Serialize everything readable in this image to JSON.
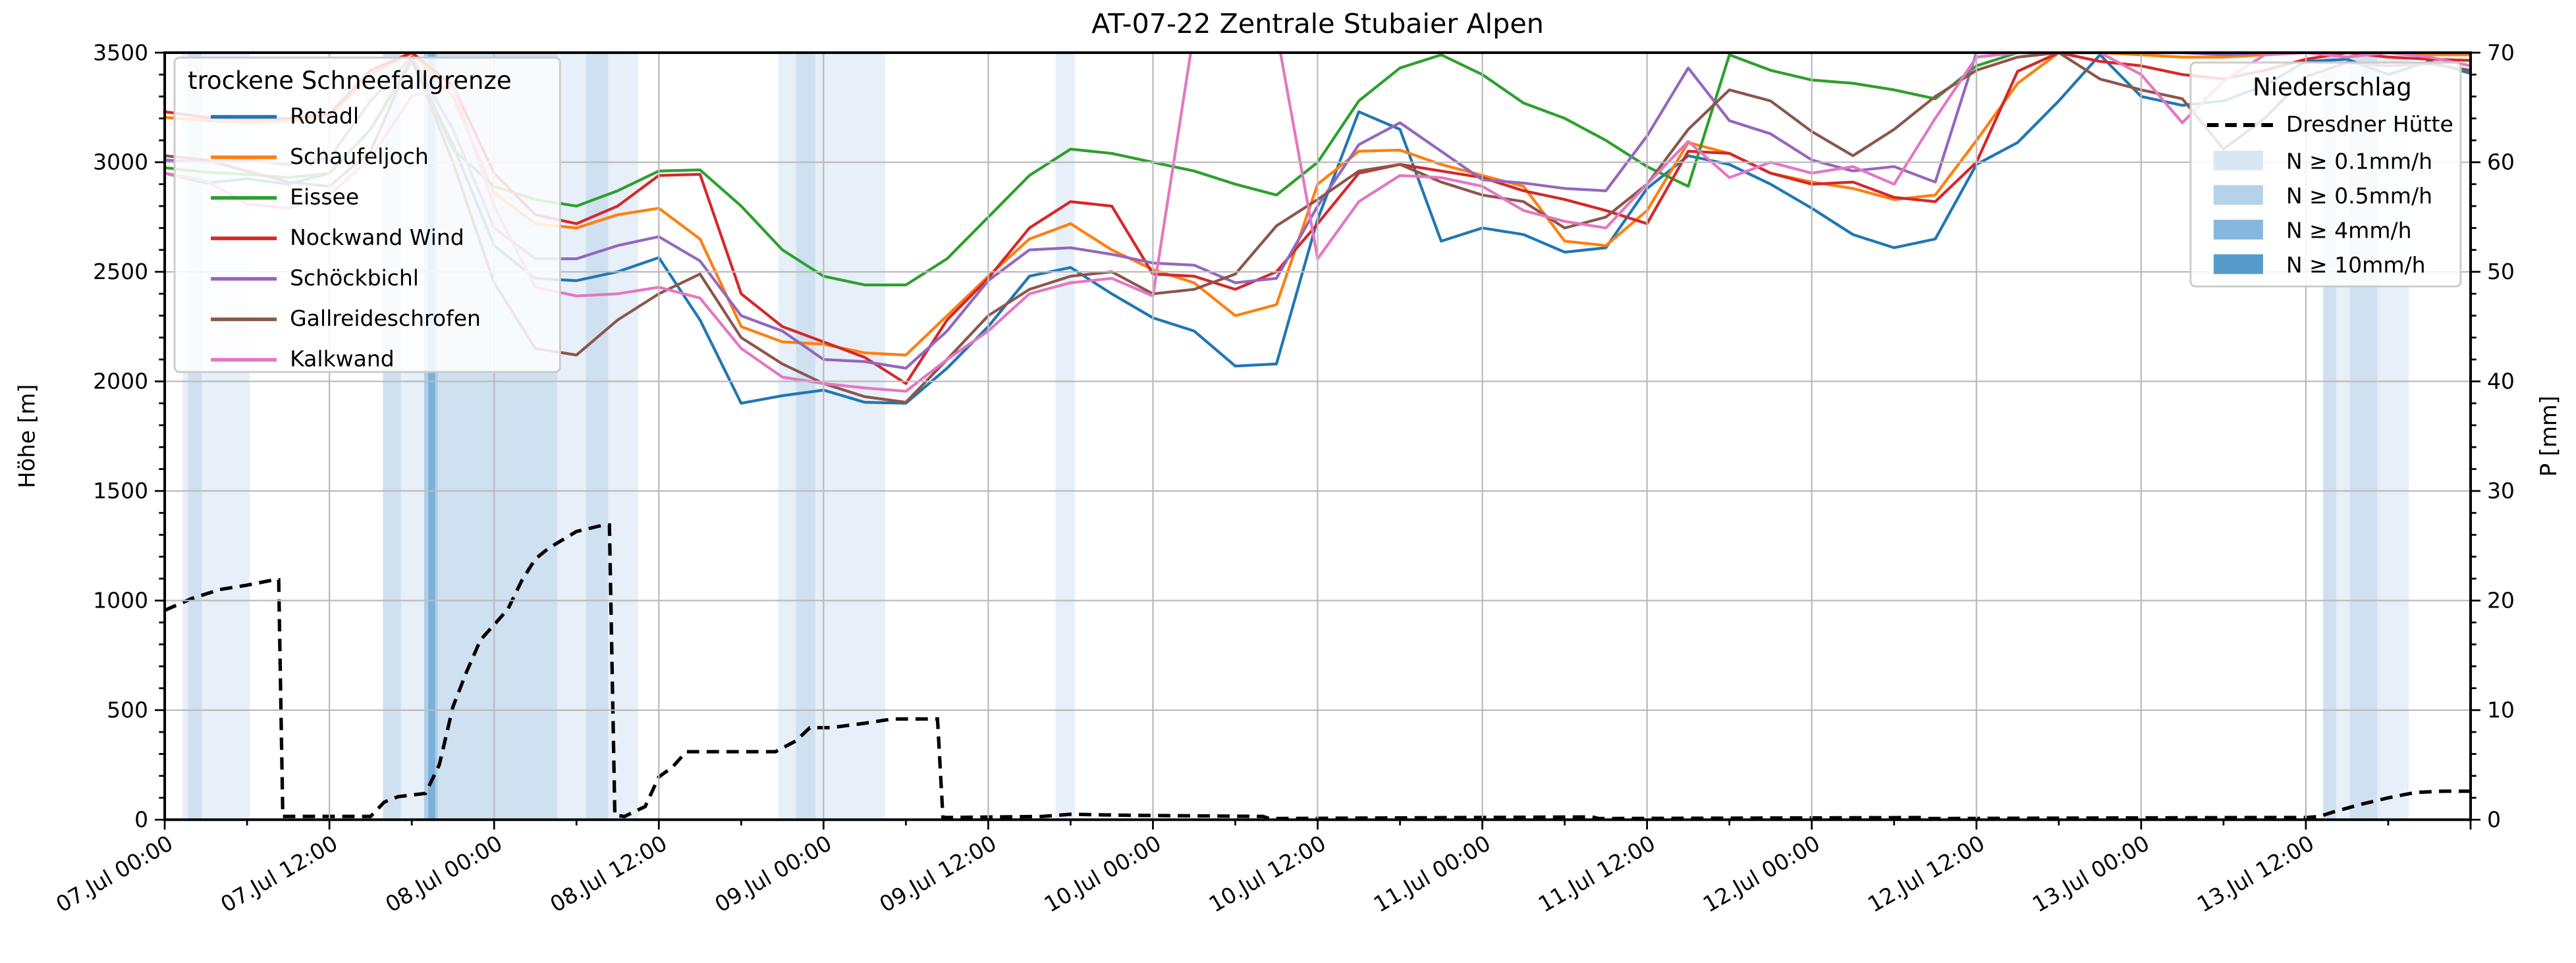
{
  "title": "AT-07-22 Zentrale Stubaier Alpen",
  "axes": {
    "x": {
      "tick_hours": [
        0,
        12,
        24,
        36,
        48,
        60,
        72,
        84,
        96,
        108,
        120,
        132,
        144,
        156
      ],
      "tick_labels": [
        "07.Jul 00:00",
        "07.Jul 12:00",
        "08.Jul 00:00",
        "08.Jul 12:00",
        "09.Jul 00:00",
        "09.Jul 12:00",
        "10.Jul 00:00",
        "10.Jul 12:00",
        "11.Jul 00:00",
        "11.Jul 12:00",
        "12.Jul 00:00",
        "12.Jul 12:00",
        "13.Jul 00:00",
        "13.Jul 12:00"
      ],
      "minor_step_h": 6,
      "range_h": [
        0,
        168
      ]
    },
    "y_left": {
      "label": "Höhe [m]",
      "ticks": [
        0,
        500,
        1000,
        1500,
        2000,
        2500,
        3000,
        3500
      ],
      "minor_step": 100,
      "range": [
        0,
        3500
      ]
    },
    "y_right": {
      "label": "P [mm]",
      "ticks": [
        0,
        10,
        20,
        30,
        40,
        50,
        60,
        70
      ],
      "minor_step": 2,
      "range": [
        0,
        70
      ]
    }
  },
  "legend_left": {
    "title": "trockene Schneefallgrenze",
    "items": [
      {
        "label": "Rotadl",
        "color": "#1f77b4"
      },
      {
        "label": "Schaufeljoch",
        "color": "#ff7f0e"
      },
      {
        "label": "Eissee",
        "color": "#2ca02c"
      },
      {
        "label": "Nockwand Wind",
        "color": "#d62728"
      },
      {
        "label": "Schöckbichl",
        "color": "#9467bd"
      },
      {
        "label": "Gallreideschrofen",
        "color": "#8c564b"
      },
      {
        "label": "Kalkwand",
        "color": "#e377c2"
      }
    ]
  },
  "legend_right": {
    "title": "Niederschlag",
    "line_item": {
      "label": "Dresdner Hütte",
      "color": "#000000"
    },
    "patch_items": [
      {
        "label": "N ≥ 0.1mm/h",
        "color": "#d9e7f5"
      },
      {
        "label": "N ≥ 0.5mm/h",
        "color": "#b6d2ea"
      },
      {
        "label": "N ≥ 4mm/h",
        "color": "#85b8dc"
      },
      {
        "label": "N ≥ 10mm/h",
        "color": "#559ccd"
      }
    ]
  },
  "chart_data": {
    "type": "line",
    "x_unit": "hours since 07 Jul 00:00",
    "ylabel_left": "Höhe [m]",
    "ylabel_right": "P [mm]",
    "ylim_left": [
      0,
      3500
    ],
    "ylim_right": [
      0,
      70
    ],
    "grid": true,
    "hours": [
      0,
      3,
      6,
      9,
      12,
      15,
      18,
      21,
      24,
      27,
      30,
      33,
      36,
      39,
      42,
      45,
      48,
      51,
      54,
      57,
      60,
      63,
      66,
      69,
      72,
      75,
      78,
      81,
      84,
      87,
      90,
      93,
      96,
      99,
      102,
      105,
      108,
      111,
      114,
      117,
      120,
      123,
      126,
      129,
      132,
      135,
      138,
      141,
      144,
      147,
      150,
      153,
      156,
      159,
      162,
      165,
      168
    ],
    "series": [
      {
        "name": "Rotadl",
        "color": "#1f77b4",
        "values": [
          2950,
          2905,
          2925,
          2900,
          2950,
          3150,
          3460,
          3080,
          2620,
          2470,
          2460,
          2500,
          2565,
          2280,
          1900,
          1935,
          1960,
          1905,
          1900,
          2060,
          2250,
          2480,
          2520,
          2400,
          2290,
          2230,
          2070,
          2080,
          2740,
          3230,
          3150,
          2640,
          2700,
          2670,
          2590,
          2610,
          2880,
          3030,
          2990,
          2900,
          2790,
          2670,
          2610,
          2650,
          2990,
          3090,
          3280,
          3490,
          3300,
          3260,
          3280,
          3350,
          3460,
          3470,
          3400,
          3460,
          3405
        ]
      },
      {
        "name": "Schaufeljoch",
        "color": "#ff7f0e",
        "values": [
          3205,
          3190,
          3180,
          3190,
          3210,
          3400,
          3500,
          3300,
          2860,
          2720,
          2700,
          2760,
          2790,
          2650,
          2250,
          2180,
          2170,
          2130,
          2120,
          2300,
          2480,
          2650,
          2720,
          2600,
          2510,
          2450,
          2300,
          2350,
          2900,
          3050,
          3055,
          2990,
          2940,
          2890,
          2640,
          2620,
          2780,
          3090,
          3040,
          2950,
          2910,
          2880,
          2830,
          2850,
          3100,
          3360,
          3500,
          3500,
          3490,
          3480,
          3480,
          3490,
          3500,
          3500,
          3500,
          3490,
          3490
        ]
      },
      {
        "name": "Eissee",
        "color": "#2ca02c",
        "values": [
          2975,
          2955,
          2945,
          2930,
          2950,
          3150,
          3470,
          3060,
          2890,
          2830,
          2800,
          2870,
          2960,
          2965,
          2800,
          2600,
          2480,
          2440,
          2440,
          2560,
          2750,
          2940,
          3060,
          3040,
          3000,
          2960,
          2900,
          2850,
          3000,
          3280,
          3430,
          3490,
          3400,
          3270,
          3200,
          3100,
          2980,
          2890,
          3490,
          3420,
          3375,
          3360,
          3330,
          3290,
          3440,
          3500,
          3500,
          3500,
          3500,
          3500,
          3500,
          3500,
          3500,
          3500,
          3500,
          3500,
          3500
        ]
      },
      {
        "name": "Nockwand Wind",
        "color": "#d62728",
        "values": [
          3230,
          3205,
          3195,
          3200,
          3220,
          3420,
          3500,
          3350,
          2950,
          2760,
          2720,
          2800,
          2940,
          2945,
          2400,
          2250,
          2180,
          2110,
          1990,
          2280,
          2470,
          2700,
          2820,
          2800,
          2490,
          2480,
          2420,
          2500,
          2720,
          2950,
          2990,
          2960,
          2930,
          2870,
          2830,
          2780,
          2720,
          3050,
          3040,
          2950,
          2900,
          2910,
          2840,
          2820,
          3000,
          3415,
          3500,
          3460,
          3440,
          3400,
          3380,
          3420,
          3470,
          3500,
          3480,
          3470,
          3465
        ]
      },
      {
        "name": "Schöckbichl",
        "color": "#9467bd",
        "values": [
          3010,
          3000,
          3010,
          2990,
          3020,
          3280,
          3480,
          3150,
          2700,
          2560,
          2560,
          2620,
          2660,
          2550,
          2300,
          2230,
          2100,
          2090,
          2060,
          2230,
          2460,
          2600,
          2610,
          2580,
          2540,
          2530,
          2450,
          2470,
          2800,
          3080,
          3180,
          3050,
          2920,
          2905,
          2880,
          2870,
          3120,
          3430,
          3190,
          3130,
          3010,
          2960,
          2980,
          2910,
          3500,
          3500,
          3500,
          3500,
          3500,
          3500,
          3490,
          3500,
          3500,
          3500,
          3500,
          3500,
          3500
        ]
      },
      {
        "name": "Gallreideschrofen",
        "color": "#8c564b",
        "values": [
          3030,
          3010,
          2960,
          2910,
          2890,
          3050,
          3480,
          3000,
          2450,
          2150,
          2120,
          2280,
          2400,
          2490,
          2200,
          2080,
          1990,
          1930,
          1905,
          2100,
          2300,
          2420,
          2480,
          2500,
          2400,
          2420,
          2490,
          2710,
          2830,
          2960,
          2990,
          2910,
          2850,
          2820,
          2700,
          2750,
          2900,
          3150,
          3330,
          3280,
          3140,
          3030,
          3150,
          3300,
          3420,
          3480,
          3500,
          3380,
          3330,
          3290,
          3060,
          3200,
          3390,
          3455,
          3440,
          3450,
          3420
        ]
      },
      {
        "name": "Kalkwand",
        "color": "#e377c2",
        "values": [
          2950,
          2915,
          2810,
          2790,
          2850,
          3020,
          3300,
          3350,
          2800,
          2430,
          2390,
          2400,
          2430,
          2380,
          2150,
          2020,
          1990,
          1970,
          1955,
          2100,
          2230,
          2400,
          2450,
          2470,
          2390,
          3600,
          3600,
          3600,
          2560,
          2820,
          2940,
          2930,
          2890,
          2780,
          2730,
          2700,
          2900,
          3095,
          2930,
          3000,
          2950,
          2980,
          2900,
          3200,
          3480,
          3500,
          3500,
          3500,
          3400,
          3180,
          3370,
          3490,
          3500,
          3480,
          3500,
          3480,
          3440
        ]
      }
    ],
    "precip_line": {
      "name": "Dresdner Hütte",
      "unit": "mm",
      "points": [
        [
          0,
          19.1
        ],
        [
          2,
          20.2
        ],
        [
          4,
          21.0
        ],
        [
          6,
          21.4
        ],
        [
          8,
          21.9
        ],
        [
          8.3,
          21.9
        ],
        [
          8.6,
          0.3
        ],
        [
          15,
          0.3
        ],
        [
          16,
          1.6
        ],
        [
          17,
          2.1
        ],
        [
          19,
          2.4
        ],
        [
          20,
          5.0
        ],
        [
          21,
          10.3
        ],
        [
          22,
          13.5
        ],
        [
          23,
          16.4
        ],
        [
          25,
          19.2
        ],
        [
          26,
          21.8
        ],
        [
          27,
          23.8
        ],
        [
          28,
          24.8
        ],
        [
          30,
          26.3
        ],
        [
          32,
          26.9
        ],
        [
          32.4,
          26.9
        ],
        [
          32.8,
          0.4
        ],
        [
          33.5,
          0.3
        ],
        [
          35,
          1.2
        ],
        [
          36,
          3.9
        ],
        [
          37,
          4.8
        ],
        [
          38,
          6.2
        ],
        [
          44.5,
          6.2
        ],
        [
          46,
          7.2
        ],
        [
          47,
          8.4
        ],
        [
          48.5,
          8.4
        ],
        [
          51,
          8.8
        ],
        [
          53,
          9.2
        ],
        [
          56,
          9.2
        ],
        [
          56.3,
          9.2
        ],
        [
          56.7,
          0.2
        ],
        [
          64,
          0.3
        ],
        [
          66,
          0.5
        ],
        [
          70,
          0.4
        ],
        [
          80,
          0.3
        ],
        [
          80.5,
          0.1
        ],
        [
          104,
          0.25
        ],
        [
          104.5,
          0.1
        ],
        [
          128,
          0.2
        ],
        [
          128.5,
          0.1
        ],
        [
          152,
          0.2
        ],
        [
          156,
          0.2
        ],
        [
          157,
          0.3
        ],
        [
          158,
          0.7
        ],
        [
          160,
          1.4
        ],
        [
          162,
          2.0
        ],
        [
          164,
          2.5
        ],
        [
          166,
          2.6
        ],
        [
          168,
          2.6
        ]
      ]
    },
    "precip_bands": [
      {
        "from_h": 1.3,
        "to_h": 6.2,
        "level": "0.1"
      },
      {
        "from_h": 1.7,
        "to_h": 2.7,
        "level": "0.5"
      },
      {
        "from_h": 15.9,
        "to_h": 34.5,
        "level": "0.1"
      },
      {
        "from_h": 15.9,
        "to_h": 17.2,
        "level": "0.5"
      },
      {
        "from_h": 19.9,
        "to_h": 28.6,
        "level": "0.5"
      },
      {
        "from_h": 30.7,
        "to_h": 32.3,
        "level": "0.5"
      },
      {
        "from_h": 18.9,
        "to_h": 19.9,
        "level": "4"
      },
      {
        "from_h": 19.2,
        "to_h": 19.7,
        "level": "10"
      },
      {
        "from_h": 44.7,
        "to_h": 52.5,
        "level": "0.1"
      },
      {
        "from_h": 46.0,
        "to_h": 47.4,
        "level": "0.5"
      },
      {
        "from_h": 64.9,
        "to_h": 66.3,
        "level": "0.1"
      },
      {
        "from_h": 157.2,
        "to_h": 163.5,
        "level": "0.1"
      },
      {
        "from_h": 157.3,
        "to_h": 158.2,
        "level": "0.5"
      },
      {
        "from_h": 159.2,
        "to_h": 161.2,
        "level": "0.5"
      }
    ],
    "band_colors": {
      "0.1": "#e7eff8",
      "0.5": "#cfe0f0",
      "4": "#aecde6",
      "10": "#79b1d8"
    }
  },
  "style": {
    "grid_color": "#bbbbbb",
    "spine_color": "#000000",
    "legend_border": "#cccccc",
    "background": "#ffffff"
  }
}
